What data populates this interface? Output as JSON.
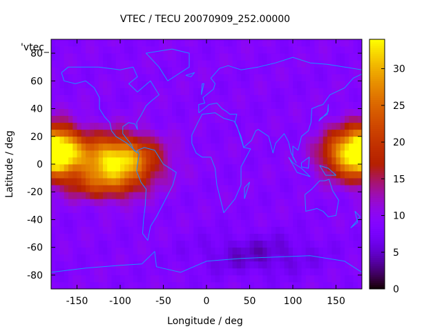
{
  "chart_data": {
    "type": "heatmap",
    "title": "VTEC / TECU 20070909_252.00000",
    "xlabel": "Longitude / deg",
    "ylabel": "Latitude / deg",
    "xlim": [
      -180,
      180
    ],
    "ylim": [
      -90,
      90
    ],
    "xticks": [
      -150,
      -100,
      -50,
      0,
      50,
      100,
      150
    ],
    "yticks": [
      -80,
      -60,
      -40,
      -20,
      0,
      20,
      40,
      60,
      80
    ],
    "colorbar": {
      "range": [
        0,
        34
      ],
      "ticks": [
        0,
        5,
        10,
        15,
        20,
        25,
        30
      ]
    },
    "series_key": "'vtec_",
    "coastlines": true,
    "grid": false,
    "features": [
      {
        "lon": -105,
        "lat": 3,
        "amplitude": 25,
        "lon_sigma": 32,
        "lat_sigma": 12,
        "label": ""
      },
      {
        "lon": -170,
        "lat": 10,
        "amplitude": 20,
        "lon_sigma": 18,
        "lat_sigma": 12,
        "label": ""
      },
      {
        "lon": 165,
        "lat": 8,
        "amplitude": 20,
        "lon_sigma": 22,
        "lat_sigma": 12,
        "label": ""
      },
      {
        "lon": -120,
        "lat": -15,
        "amplitude": 8,
        "lon_sigma": 30,
        "lat_sigma": 8,
        "label": ""
      },
      {
        "lon": 60,
        "lat": -65,
        "amplitude": -4,
        "lon_sigma": 50,
        "lat_sigma": 10,
        "label": ""
      }
    ],
    "background": 9
  },
  "colors": {
    "axis": "#000000",
    "coastline": "#1e90ff",
    "palette": [
      "#000000",
      "#5a009c",
      "#9c1cff",
      "#c8320f",
      "#ff7a00",
      "#ffff00"
    ]
  }
}
